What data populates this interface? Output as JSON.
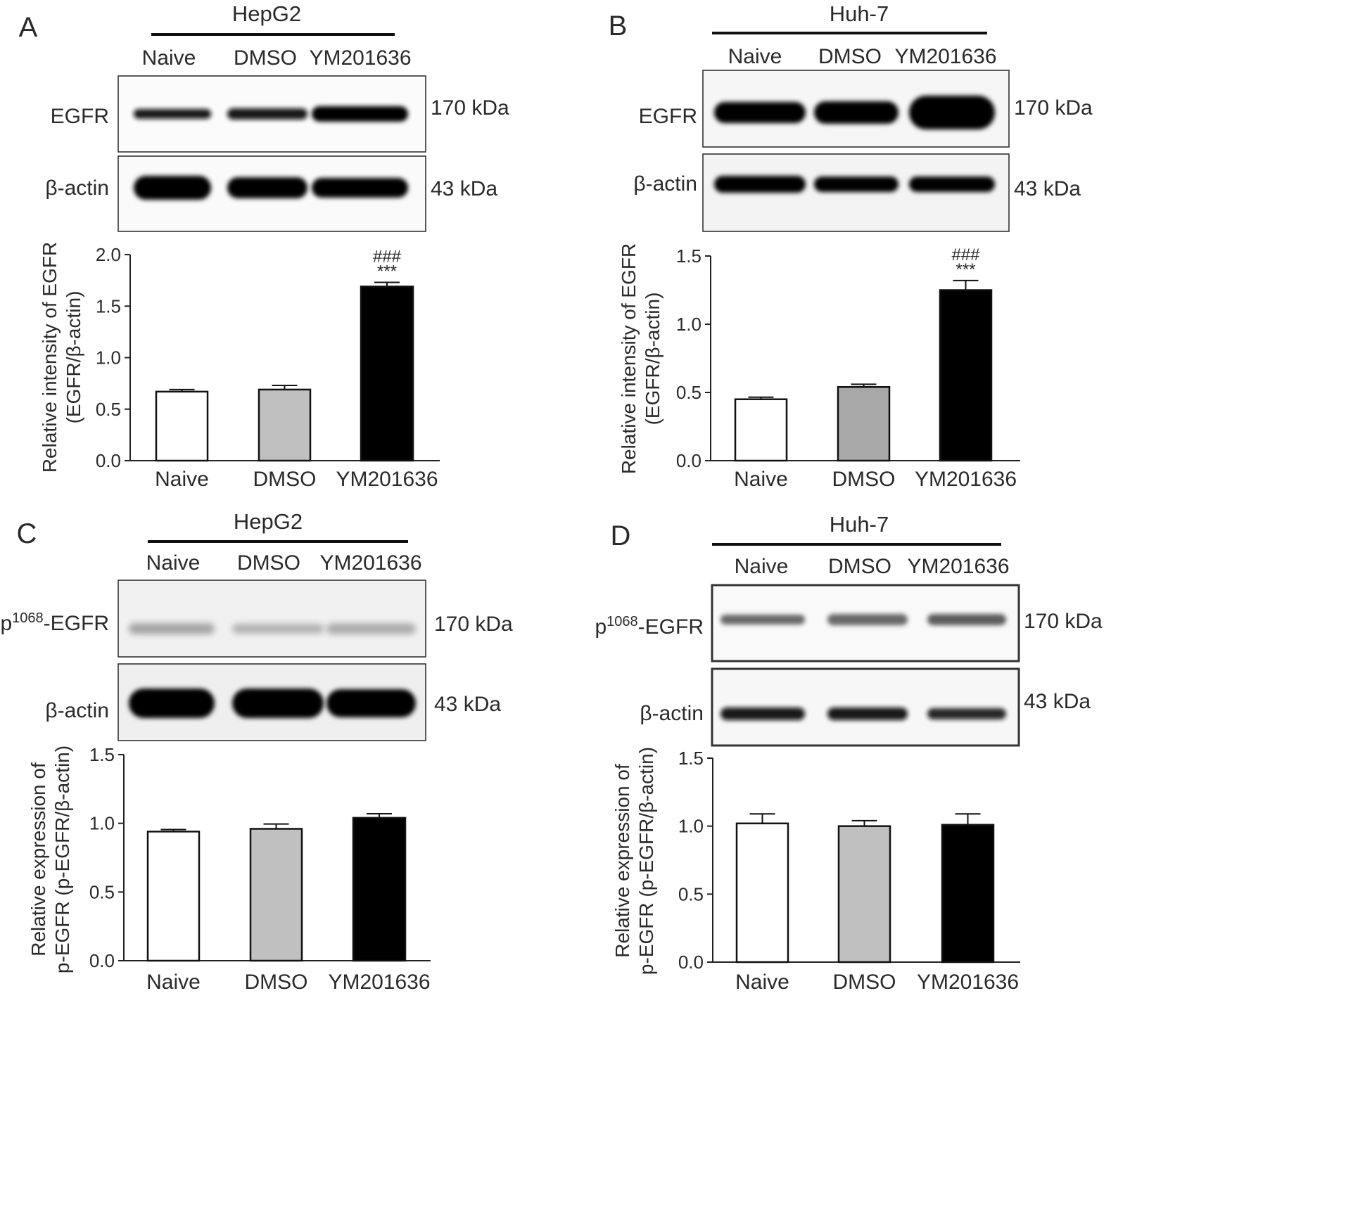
{
  "panels": [
    {
      "letter": "A",
      "cell_line": "HepG2",
      "lanes": [
        "Naive",
        "DMSO",
        "YM201636"
      ],
      "blots": [
        {
          "protein": "EGFR",
          "size": "170 kDa",
          "style": "a_egfr",
          "bands": [
            {
              "h": 14,
              "d": 0.95
            },
            {
              "h": 16,
              "d": 0.95
            },
            {
              "h": 22,
              "d": 1.0
            }
          ]
        },
        {
          "protein": "β-actin",
          "size": "43 kDa",
          "style": "a_actin",
          "bands": [
            {
              "h": 34,
              "d": 1.0
            },
            {
              "h": 30,
              "d": 1.0
            },
            {
              "h": 28,
              "d": 1.0
            }
          ]
        }
      ]
    },
    {
      "letter": "B",
      "cell_line": "Huh-7",
      "lanes": [
        "Naive",
        "DMSO",
        "YM201636"
      ],
      "blots": [
        {
          "protein": "EGFR",
          "size": "170 kDa",
          "style": "b_egfr",
          "bands": [
            {
              "h": 30,
              "d": 1.0
            },
            {
              "h": 32,
              "d": 1.0
            },
            {
              "h": 48,
              "d": 1.0
            }
          ]
        },
        {
          "protein": "β-actin",
          "size": "43 kDa",
          "style": "b_actin",
          "bands": [
            {
              "h": 24,
              "d": 1.0
            },
            {
              "h": 22,
              "d": 1.0
            },
            {
              "h": 22,
              "d": 1.0
            }
          ]
        }
      ]
    },
    {
      "letter": "C",
      "cell_line": "HepG2",
      "lanes": [
        "Naive",
        "DMSO",
        "YM201636"
      ],
      "blots": [
        {
          "protein_prefix": "p",
          "protein_sup": "1068",
          "protein_suffix": "-EGFR",
          "size": "170 kDa",
          "style": "c_p",
          "bands": [
            {
              "h": 16,
              "d": 0.55
            },
            {
              "h": 14,
              "d": 0.5
            },
            {
              "h": 16,
              "d": 0.52
            }
          ]
        },
        {
          "protein": "β-actin",
          "size": "43 kDa",
          "style": "c_actin",
          "bands": [
            {
              "h": 42,
              "d": 1.0
            },
            {
              "h": 42,
              "d": 1.0
            },
            {
              "h": 40,
              "d": 1.0
            }
          ]
        }
      ]
    },
    {
      "letter": "D",
      "cell_line": "Huh-7",
      "lanes": [
        "Naive",
        "DMSO",
        "YM201636"
      ],
      "blots": [
        {
          "protein_prefix": "p",
          "protein_sup": "1068",
          "protein_suffix": "-EGFR",
          "size": "170 kDa",
          "style": "d_p",
          "bands": [
            {
              "h": 14,
              "d": 0.75
            },
            {
              "h": 16,
              "d": 0.75
            },
            {
              "h": 16,
              "d": 0.78
            }
          ]
        },
        {
          "protein": "β-actin",
          "size": "43 kDa",
          "style": "d_actin",
          "bands": [
            {
              "h": 18,
              "d": 0.95
            },
            {
              "h": 18,
              "d": 0.95
            },
            {
              "h": 16,
              "d": 0.92
            }
          ]
        }
      ]
    }
  ],
  "chart_data": [
    {
      "panel": "A",
      "type": "bar",
      "categories": [
        "Naive",
        "DMSO",
        "YM201636"
      ],
      "values": [
        0.67,
        0.69,
        1.69
      ],
      "errors": [
        0.02,
        0.04,
        0.04
      ],
      "significance": [
        "",
        "",
        "###\n***"
      ],
      "bar_colors": [
        "#ffffff",
        "#c0c0c0",
        "#000000"
      ],
      "ylabel_lines": [
        "Relative intensity of EGFR",
        "(EGFR/β-actin)"
      ],
      "ylim": [
        0,
        2.0
      ],
      "yticks": [
        "0.0",
        "0.5",
        "1.0",
        "1.5",
        "2.0"
      ]
    },
    {
      "panel": "B",
      "type": "bar",
      "categories": [
        "Naive",
        "DMSO",
        "YM201636"
      ],
      "values": [
        0.45,
        0.54,
        1.25
      ],
      "errors": [
        0.015,
        0.02,
        0.07
      ],
      "significance": [
        "",
        "",
        "###\n***"
      ],
      "bar_colors": [
        "#ffffff",
        "#a8a8a8",
        "#000000"
      ],
      "ylabel_lines": [
        "Relative intensity of EGFR",
        "(EGFR/β-actin)"
      ],
      "ylim": [
        0,
        1.5
      ],
      "yticks": [
        "0.0",
        "0.5",
        "1.0",
        "1.5"
      ]
    },
    {
      "panel": "C",
      "type": "bar",
      "categories": [
        "Naive",
        "DMSO",
        "YM201636"
      ],
      "values": [
        0.94,
        0.96,
        1.04
      ],
      "errors": [
        0.015,
        0.035,
        0.03
      ],
      "significance": [
        "",
        "",
        ""
      ],
      "bar_colors": [
        "#ffffff",
        "#c0c0c0",
        "#000000"
      ],
      "ylabel_lines": [
        "Relative expression of",
        "p-EGFR (p-EGFR/β-actin)"
      ],
      "ylim": [
        0,
        1.5
      ],
      "yticks": [
        "0.0",
        "0.5",
        "1.0",
        "1.5"
      ]
    },
    {
      "panel": "D",
      "type": "bar",
      "categories": [
        "Naive",
        "DMSO",
        "YM201636"
      ],
      "values": [
        1.02,
        1.0,
        1.01
      ],
      "errors": [
        0.07,
        0.04,
        0.08
      ],
      "significance": [
        "",
        "",
        ""
      ],
      "bar_colors": [
        "#ffffff",
        "#c0c0c0",
        "#000000"
      ],
      "ylabel_lines": [
        "Relative expression of",
        "p-EGFR (p-EGFR/β-actin)"
      ],
      "ylim": [
        0,
        1.5
      ],
      "yticks": [
        "0.0",
        "0.5",
        "1.0",
        "1.5"
      ]
    }
  ]
}
